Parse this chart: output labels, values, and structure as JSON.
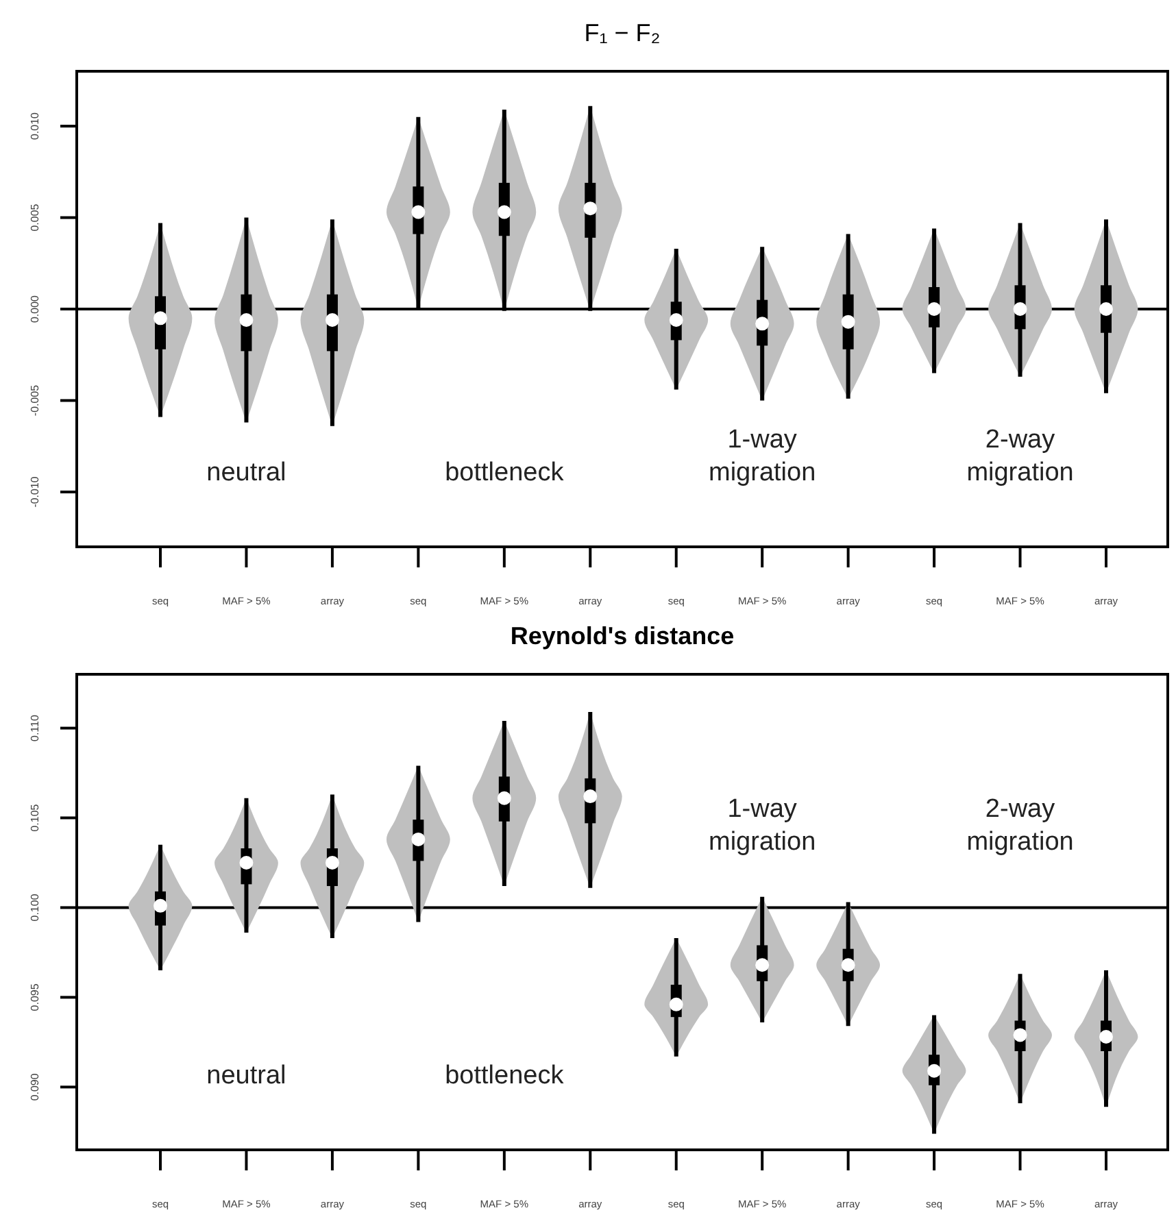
{
  "chart_data": [
    {
      "type": "box",
      "title": "F₁ − F₂",
      "categories": [
        "seq",
        "MAF > 5%",
        "array",
        "seq",
        "MAF > 5%",
        "array",
        "seq",
        "MAF > 5%",
        "array",
        "seq",
        "MAF > 5%",
        "array"
      ],
      "ylim": [
        -0.013,
        0.013
      ],
      "yticks": [
        {
          "value": -0.01,
          "label": "-0.010"
        },
        {
          "value": -0.005,
          "label": "-0.005"
        },
        {
          "value": 0,
          "label": "0.000"
        },
        {
          "value": 0.005,
          "label": "0.005"
        },
        {
          "value": 0.01,
          "label": "0.010"
        }
      ],
      "ref_lines": [
        {
          "axis": "y",
          "value": 0,
          "color": "#000000"
        }
      ],
      "annotations": [
        "neutral",
        "bottleneck",
        "1-way migration",
        "2-way migration"
      ],
      "series": [
        {
          "color": "#000000",
          "boxes": [
            {
              "low": -0.0059,
              "q1": -0.0022,
              "median": -0.0005,
              "q3": 0.0007,
              "high": 0.0047
            },
            {
              "low": -0.0062,
              "q1": -0.0023,
              "median": -0.0006,
              "q3": 0.0008,
              "high": 0.005
            },
            {
              "low": -0.0064,
              "q1": -0.0023,
              "median": -0.0006,
              "q3": 0.0008,
              "high": 0.0049
            },
            {
              "low": 0,
              "q1": 0.0041,
              "median": 0.0053,
              "q3": 0.0067,
              "high": 0.0105
            },
            {
              "low": -0.0001,
              "q1": 0.004,
              "median": 0.0053,
              "q3": 0.0069,
              "high": 0.0109
            },
            {
              "low": -0.0001,
              "q1": 0.0039,
              "median": 0.0055,
              "q3": 0.0069,
              "high": 0.0111
            },
            {
              "low": -0.0044,
              "q1": -0.0017,
              "median": -0.0006,
              "q3": 0.0004,
              "high": 0.0033
            },
            {
              "low": -0.005,
              "q1": -0.002,
              "median": -0.0008,
              "q3": 0.0005,
              "high": 0.0034
            },
            {
              "low": -0.0049,
              "q1": -0.0022,
              "median": -0.0007,
              "q3": 0.0008,
              "high": 0.0041
            },
            {
              "low": -0.0035,
              "q1": -0.001,
              "median": 0,
              "q3": 0.0012,
              "high": 0.0044
            },
            {
              "low": -0.0037,
              "q1": -0.0011,
              "median": 0,
              "q3": 0.0013,
              "high": 0.0047
            },
            {
              "low": -0.0046,
              "q1": -0.0013,
              "median": 0,
              "q3": 0.0013,
              "high": 0.0049
            }
          ]
        }
      ]
    },
    {
      "type": "box",
      "title": "Reynold's distance",
      "categories": [
        "seq",
        "MAF > 5%",
        "array",
        "seq",
        "MAF > 5%",
        "array",
        "seq",
        "MAF > 5%",
        "array",
        "seq",
        "MAF > 5%",
        "array"
      ],
      "ylim": [
        0.0865,
        0.113
      ],
      "yticks": [
        {
          "value": 0.09,
          "label": "0.090"
        },
        {
          "value": 0.095,
          "label": "0.095"
        },
        {
          "value": 0.1,
          "label": "0.100"
        },
        {
          "value": 0.105,
          "label": "0.105"
        },
        {
          "value": 0.11,
          "label": "0.110"
        }
      ],
      "ref_lines": [
        {
          "axis": "y",
          "value": 0.1,
          "color": "#000000"
        }
      ],
      "annotations": [
        "neutral",
        "bottleneck",
        "1-way migration",
        "2-way migration"
      ],
      "series": [
        {
          "color": "#000000",
          "boxes": [
            {
              "low": 0.0965,
              "q1": 0.099,
              "median": 0.1001,
              "q3": 0.1009,
              "high": 0.1035
            },
            {
              "low": 0.0986,
              "q1": 0.1013,
              "median": 0.1025,
              "q3": 0.1033,
              "high": 0.1061
            },
            {
              "low": 0.0983,
              "q1": 0.1012,
              "median": 0.1025,
              "q3": 0.1033,
              "high": 0.1063
            },
            {
              "low": 0.0992,
              "q1": 0.1026,
              "median": 0.1038,
              "q3": 0.1049,
              "high": 0.1079
            },
            {
              "low": 0.1012,
              "q1": 0.1048,
              "median": 0.1061,
              "q3": 0.1073,
              "high": 0.1104
            },
            {
              "low": 0.1011,
              "q1": 0.1047,
              "median": 0.1062,
              "q3": 0.1072,
              "high": 0.1109
            },
            {
              "low": 0.0917,
              "q1": 0.0939,
              "median": 0.0946,
              "q3": 0.0957,
              "high": 0.0983
            },
            {
              "low": 0.0936,
              "q1": 0.0959,
              "median": 0.0968,
              "q3": 0.0979,
              "high": 0.1006
            },
            {
              "low": 0.0934,
              "q1": 0.0959,
              "median": 0.0968,
              "q3": 0.0977,
              "high": 0.1003
            },
            {
              "low": 0.0874,
              "q1": 0.0901,
              "median": 0.0909,
              "q3": 0.0918,
              "high": 0.094
            },
            {
              "low": 0.0891,
              "q1": 0.092,
              "median": 0.0929,
              "q3": 0.0937,
              "high": 0.0963
            },
            {
              "low": 0.0889,
              "q1": 0.092,
              "median": 0.0928,
              "q3": 0.0937,
              "high": 0.0965
            }
          ]
        }
      ]
    }
  ]
}
